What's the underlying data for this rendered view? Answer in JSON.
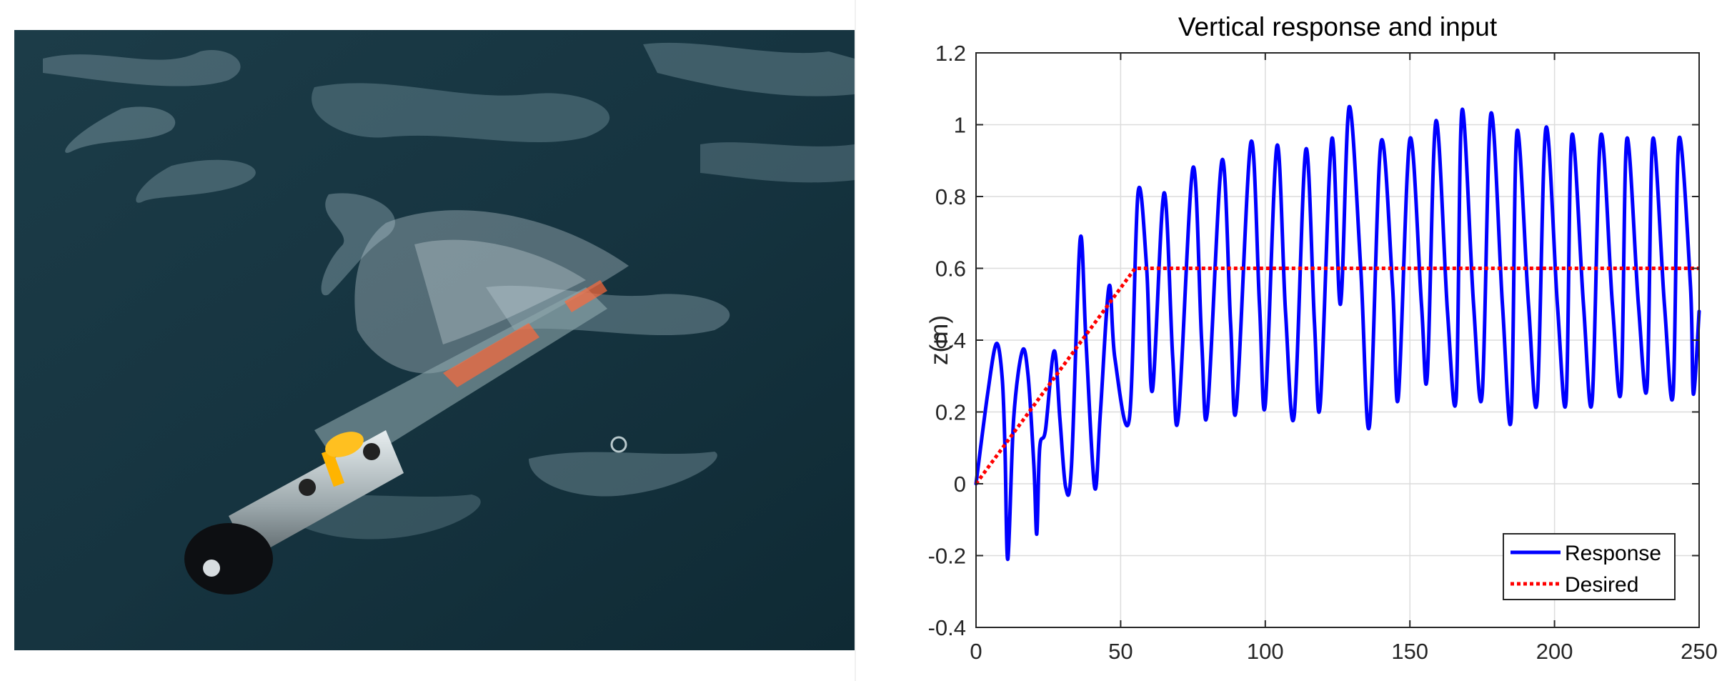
{
  "photo": {
    "description_icon": "underwater-robot-photo"
  },
  "chart_data": {
    "type": "line",
    "title": "Vertical response and input",
    "xlabel": "",
    "ylabel": "z(m)",
    "xlim": [
      0,
      250
    ],
    "ylim": [
      -0.4,
      1.2
    ],
    "xticks": [
      0,
      50,
      100,
      150,
      200,
      250
    ],
    "yticks": [
      -0.4,
      -0.2,
      0,
      0.2,
      0.4,
      0.6,
      0.8,
      1,
      1.2
    ],
    "xtick_labels": [
      "0",
      "50",
      "100",
      "150",
      "200",
      "250"
    ],
    "ytick_labels": [
      "-0.4",
      "-0.2",
      "0",
      "0.2",
      "0.4",
      "0.6",
      "0.8",
      "1",
      "1.2"
    ],
    "grid": true,
    "legend_position": "bottom-right",
    "series": [
      {
        "name": "Response",
        "color": "#0000ff",
        "style": "solid",
        "x": [
          0,
          4,
          7,
          9,
          10,
          11,
          13,
          16,
          18,
          20,
          21,
          22,
          24,
          27,
          29,
          31,
          33,
          36,
          38,
          41,
          43,
          46,
          48,
          53,
          56,
          59,
          61,
          65,
          68,
          70,
          75,
          78,
          80,
          85,
          88,
          90,
          95,
          98,
          100,
          104,
          107,
          110,
          114,
          117,
          119,
          123,
          126,
          129,
          133,
          136,
          140,
          144,
          146,
          150,
          154,
          156,
          159,
          163,
          166,
          168,
          172,
          175,
          178,
          182,
          185,
          187,
          191,
          194,
          197,
          201,
          204,
          206,
          210,
          213,
          216,
          220,
          223,
          225,
          229,
          232,
          234,
          238,
          241,
          243,
          247,
          248,
          250
        ],
        "y": [
          0,
          0.25,
          0.39,
          0.3,
          0.1,
          -0.21,
          0.18,
          0.37,
          0.3,
          0.05,
          -0.14,
          0.1,
          0.15,
          0.37,
          0.18,
          -0.01,
          0.05,
          0.68,
          0.4,
          -0.01,
          0.2,
          0.55,
          0.35,
          0.18,
          0.81,
          0.6,
          0.26,
          0.81,
          0.35,
          0.19,
          0.88,
          0.4,
          0.2,
          0.9,
          0.45,
          0.21,
          0.95,
          0.5,
          0.22,
          0.94,
          0.48,
          0.19,
          0.93,
          0.45,
          0.22,
          0.96,
          0.5,
          1.05,
          0.6,
          0.16,
          0.95,
          0.55,
          0.24,
          0.96,
          0.5,
          0.3,
          1.01,
          0.48,
          0.24,
          1.04,
          0.5,
          0.25,
          1.03,
          0.5,
          0.18,
          0.98,
          0.5,
          0.23,
          0.99,
          0.5,
          0.23,
          0.97,
          0.5,
          0.23,
          0.97,
          0.5,
          0.26,
          0.96,
          0.5,
          0.27,
          0.96,
          0.5,
          0.25,
          0.96,
          0.55,
          0.25,
          0.48
        ]
      },
      {
        "name": "Desired",
        "color": "#ff0000",
        "style": "dotted",
        "x": [
          0,
          55,
          250
        ],
        "y": [
          0,
          0.6,
          0.6
        ]
      }
    ]
  }
}
